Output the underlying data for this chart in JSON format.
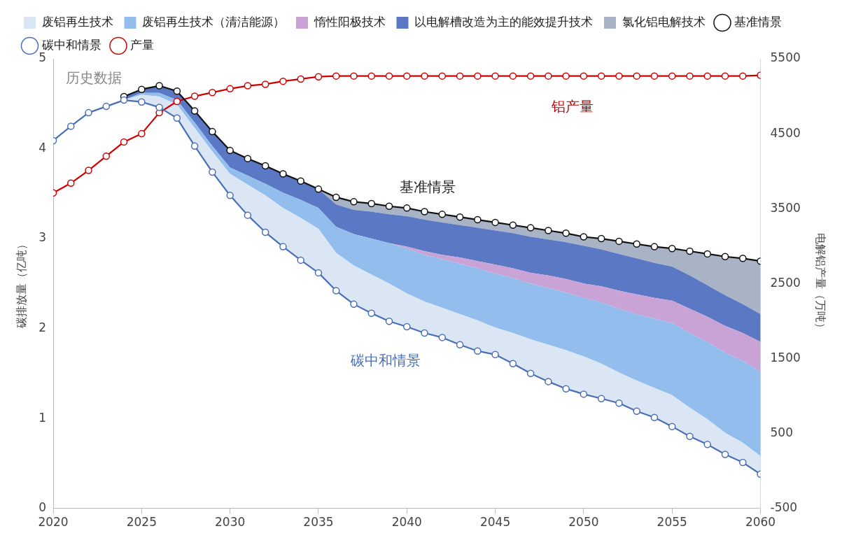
{
  "chart_data": {
    "type": "line",
    "legend": "top",
    "line_style": "solid",
    "ylabel": "碳排放量（亿吨）",
    "y2label": "电解铝产量（万吨）",
    "x": [
      2020,
      2021,
      2022,
      2023,
      2024,
      2025,
      2026,
      2027,
      2028,
      2029,
      2030,
      2031,
      2032,
      2033,
      2034,
      2035,
      2036,
      2037,
      2038,
      2039,
      2040,
      2041,
      2042,
      2043,
      2044,
      2045,
      2046,
      2047,
      2048,
      2049,
      2050,
      2051,
      2052,
      2053,
      2054,
      2055,
      2056,
      2057,
      2058,
      2059,
      2060
    ],
    "xlim": [
      2020,
      2060
    ],
    "xticks": [
      2020,
      2025,
      2030,
      2035,
      2040,
      2045,
      2050,
      2055,
      2060
    ],
    "ylim": [
      0,
      5
    ],
    "yticks": [
      0,
      1,
      2,
      3,
      4,
      5
    ],
    "y2lim": [
      -500,
      5500
    ],
    "y2ticks": [
      -500,
      500,
      1500,
      2500,
      3500,
      4500,
      5500
    ],
    "series": [
      {
        "name": "基准情景",
        "marker": "circle",
        "color": "#111111",
        "values": [
          null,
          null,
          null,
          null,
          4.58,
          4.66,
          4.7,
          4.64,
          4.42,
          4.19,
          3.98,
          3.89,
          3.81,
          3.72,
          3.64,
          3.55,
          3.46,
          3.41,
          3.39,
          3.36,
          3.34,
          3.3,
          3.27,
          3.24,
          3.21,
          3.18,
          3.15,
          3.12,
          3.09,
          3.06,
          3.02,
          3.0,
          2.97,
          2.94,
          2.91,
          2.89,
          2.86,
          2.83,
          2.8,
          2.78,
          2.75
        ]
      },
      {
        "name": "碳中和情景",
        "marker": "circle",
        "color": "#4a6fb5",
        "values": [
          4.09,
          4.25,
          4.4,
          4.47,
          4.54,
          4.52,
          4.46,
          4.34,
          4.03,
          3.74,
          3.48,
          3.26,
          3.07,
          2.91,
          2.76,
          2.62,
          2.42,
          2.27,
          2.17,
          2.08,
          2.02,
          1.95,
          1.9,
          1.82,
          1.75,
          1.71,
          1.61,
          1.5,
          1.41,
          1.33,
          1.27,
          1.22,
          1.17,
          1.08,
          1.01,
          0.91,
          0.8,
          0.71,
          0.6,
          0.51,
          0.38
        ]
      },
      {
        "name": "废铝再生技术",
        "type": "area",
        "color": "#dae6f4",
        "values": [
          null,
          null,
          null,
          null,
          4.54,
          4.6,
          4.58,
          4.49,
          4.23,
          3.97,
          3.72,
          3.6,
          3.48,
          3.34,
          3.23,
          3.11,
          2.84,
          2.7,
          2.6,
          2.5,
          2.39,
          2.3,
          2.23,
          2.16,
          2.09,
          2.01,
          1.95,
          1.88,
          1.82,
          1.76,
          1.69,
          1.61,
          1.51,
          1.42,
          1.34,
          1.26,
          1.12,
          0.99,
          0.84,
          0.73,
          0.58
        ]
      },
      {
        "name": "废铝再生技术（清洁能源）",
        "type": "area",
        "color": "#93bdec",
        "values": [
          null,
          null,
          null,
          null,
          4.54,
          4.62,
          4.62,
          4.54,
          4.29,
          4.03,
          3.79,
          3.7,
          3.61,
          3.51,
          3.43,
          3.34,
          3.13,
          3.05,
          3.0,
          2.95,
          2.89,
          2.82,
          2.77,
          2.72,
          2.67,
          2.61,
          2.56,
          2.5,
          2.45,
          2.4,
          2.34,
          2.29,
          2.22,
          2.16,
          2.11,
          2.06,
          1.95,
          1.85,
          1.73,
          1.64,
          1.52
        ]
      },
      {
        "name": "惰性阳极技术",
        "type": "area",
        "color": "#c9a3d6",
        "values": [
          null,
          null,
          null,
          null,
          4.54,
          4.62,
          4.62,
          4.54,
          4.29,
          4.03,
          3.79,
          3.7,
          3.61,
          3.51,
          3.43,
          3.34,
          3.13,
          3.05,
          3.0,
          2.95,
          2.91,
          2.86,
          2.82,
          2.79,
          2.75,
          2.71,
          2.67,
          2.62,
          2.59,
          2.55,
          2.5,
          2.47,
          2.42,
          2.38,
          2.34,
          2.31,
          2.22,
          2.13,
          2.03,
          1.95,
          1.85
        ]
      },
      {
        "name": "以电解槽改造为主的能效提升技术",
        "type": "area",
        "color": "#5a78c4",
        "values": [
          null,
          null,
          null,
          null,
          4.58,
          4.66,
          4.7,
          4.64,
          4.42,
          4.19,
          3.98,
          3.89,
          3.81,
          3.72,
          3.64,
          3.55,
          3.38,
          3.32,
          3.3,
          3.27,
          3.25,
          3.21,
          3.18,
          3.15,
          3.12,
          3.09,
          3.06,
          3.02,
          2.99,
          2.96,
          2.92,
          2.88,
          2.83,
          2.78,
          2.73,
          2.69,
          2.59,
          2.48,
          2.37,
          2.27,
          2.16
        ]
      },
      {
        "name": "氯化铝电解技术",
        "type": "area",
        "color": "#a8b3c6",
        "values": [
          null,
          null,
          null,
          null,
          null,
          null,
          null,
          null,
          null,
          null,
          null,
          null,
          null,
          null,
          null,
          3.55,
          3.46,
          3.41,
          3.39,
          3.36,
          3.34,
          3.3,
          3.27,
          3.24,
          3.21,
          3.18,
          3.15,
          3.12,
          3.09,
          3.06,
          3.02,
          3.0,
          2.97,
          2.94,
          2.91,
          2.89,
          2.86,
          2.83,
          2.8,
          2.78,
          2.75
        ]
      },
      {
        "name": "产量",
        "marker": "circle",
        "axis": "y2",
        "color": "#d00000",
        "values": [
          3710,
          3840,
          4010,
          4200,
          4390,
          4500,
          4780,
          4930,
          5000,
          5050,
          5100,
          5140,
          5160,
          5200,
          5230,
          5260,
          5270,
          5270,
          5270,
          5270,
          5270,
          5270,
          5270,
          5270,
          5270,
          5270,
          5270,
          5270,
          5270,
          5270,
          5270,
          5270,
          5270,
          5270,
          5270,
          5270,
          5270,
          5270,
          5270,
          5270,
          5280
        ]
      }
    ],
    "annotations": [
      "历史数据",
      "铝产量",
      "基准情景",
      "碳中和情景"
    ]
  }
}
